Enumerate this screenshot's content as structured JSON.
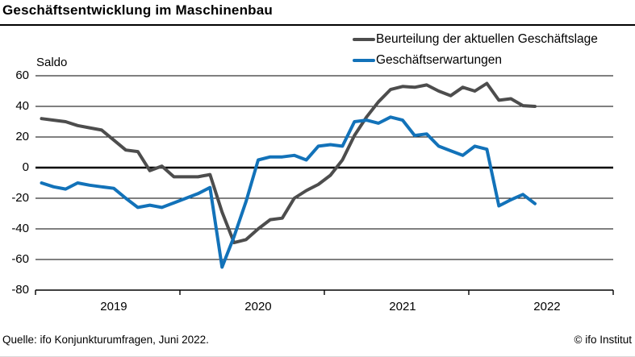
{
  "header": {
    "title": "Geschäftsentwicklung im Maschinenbau"
  },
  "chart_data": {
    "type": "line",
    "y_axis_label": "Saldo",
    "x_tick_years": [
      "2019",
      "2020",
      "2021",
      "2022"
    ],
    "y_ticks": [
      60,
      40,
      20,
      0,
      -20,
      -40,
      -60,
      -80
    ],
    "ylim": [
      -80,
      60
    ],
    "x_range": "Monthly, Jan 2019 - Jun 2022",
    "grid": "horizontal",
    "legend_position": "top-right",
    "series": [
      {
        "name": "Beurteilung der aktuellen Geschäftslage",
        "color": "#4d4d4d",
        "values": [
          32,
          31,
          30,
          27.5,
          26,
          24.5,
          18,
          11.5,
          10.5,
          -2,
          1,
          -6,
          -6,
          -6,
          -4.5,
          -29,
          -49,
          -47,
          -40,
          -34,
          -33,
          -20,
          -15,
          -11,
          -5,
          5,
          21,
          33,
          43,
          51,
          53,
          52.5,
          54,
          50,
          47,
          52.5,
          50,
          55,
          44,
          45,
          40.5,
          40
        ]
      },
      {
        "name": "Geschäftserwartungen",
        "color": "#1272b9",
        "values": [
          -10,
          -12.5,
          -14,
          -10,
          -11.5,
          -12.5,
          -13.5,
          -20,
          -26,
          -24.5,
          -26,
          -23,
          -20,
          -17,
          -13,
          -65,
          -45,
          -22,
          5,
          7,
          7,
          8,
          5,
          14,
          15,
          14,
          30,
          31,
          29,
          33,
          31,
          21,
          22,
          14,
          11,
          8,
          14,
          12,
          -25,
          -21,
          -17.5,
          -23.5
        ]
      }
    ]
  },
  "footer": {
    "source": "Quelle: ifo Konjunkturumfragen, Juni 2022.",
    "copyright": "© ifo Institut"
  }
}
